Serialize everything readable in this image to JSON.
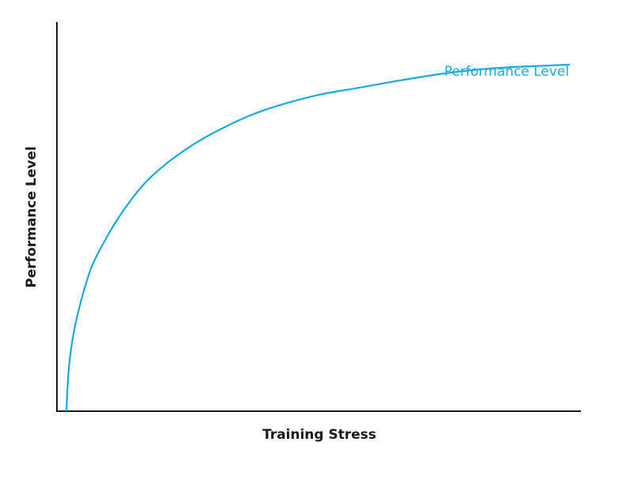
{
  "chart_data": {
    "type": "line",
    "title": "",
    "xlabel": "Training Stress",
    "ylabel": "Performance Level",
    "xlim": [
      0,
      100
    ],
    "ylim": [
      0,
      100
    ],
    "grid": false,
    "legend": "none",
    "series": [
      {
        "name": "Performance Level",
        "color": "#1ba9e1",
        "x": [
          0,
          0.5,
          1.5,
          3,
          5,
          7.5,
          10,
          13,
          16,
          20,
          25,
          30,
          36,
          42,
          50,
          58,
          66,
          75,
          85,
          100
        ],
        "y": [
          0,
          12,
          22,
          31,
          40,
          47,
          53,
          59,
          64,
          69,
          74,
          78,
          82,
          85,
          88,
          90,
          92,
          94,
          95.5,
          96.5
        ]
      }
    ]
  }
}
